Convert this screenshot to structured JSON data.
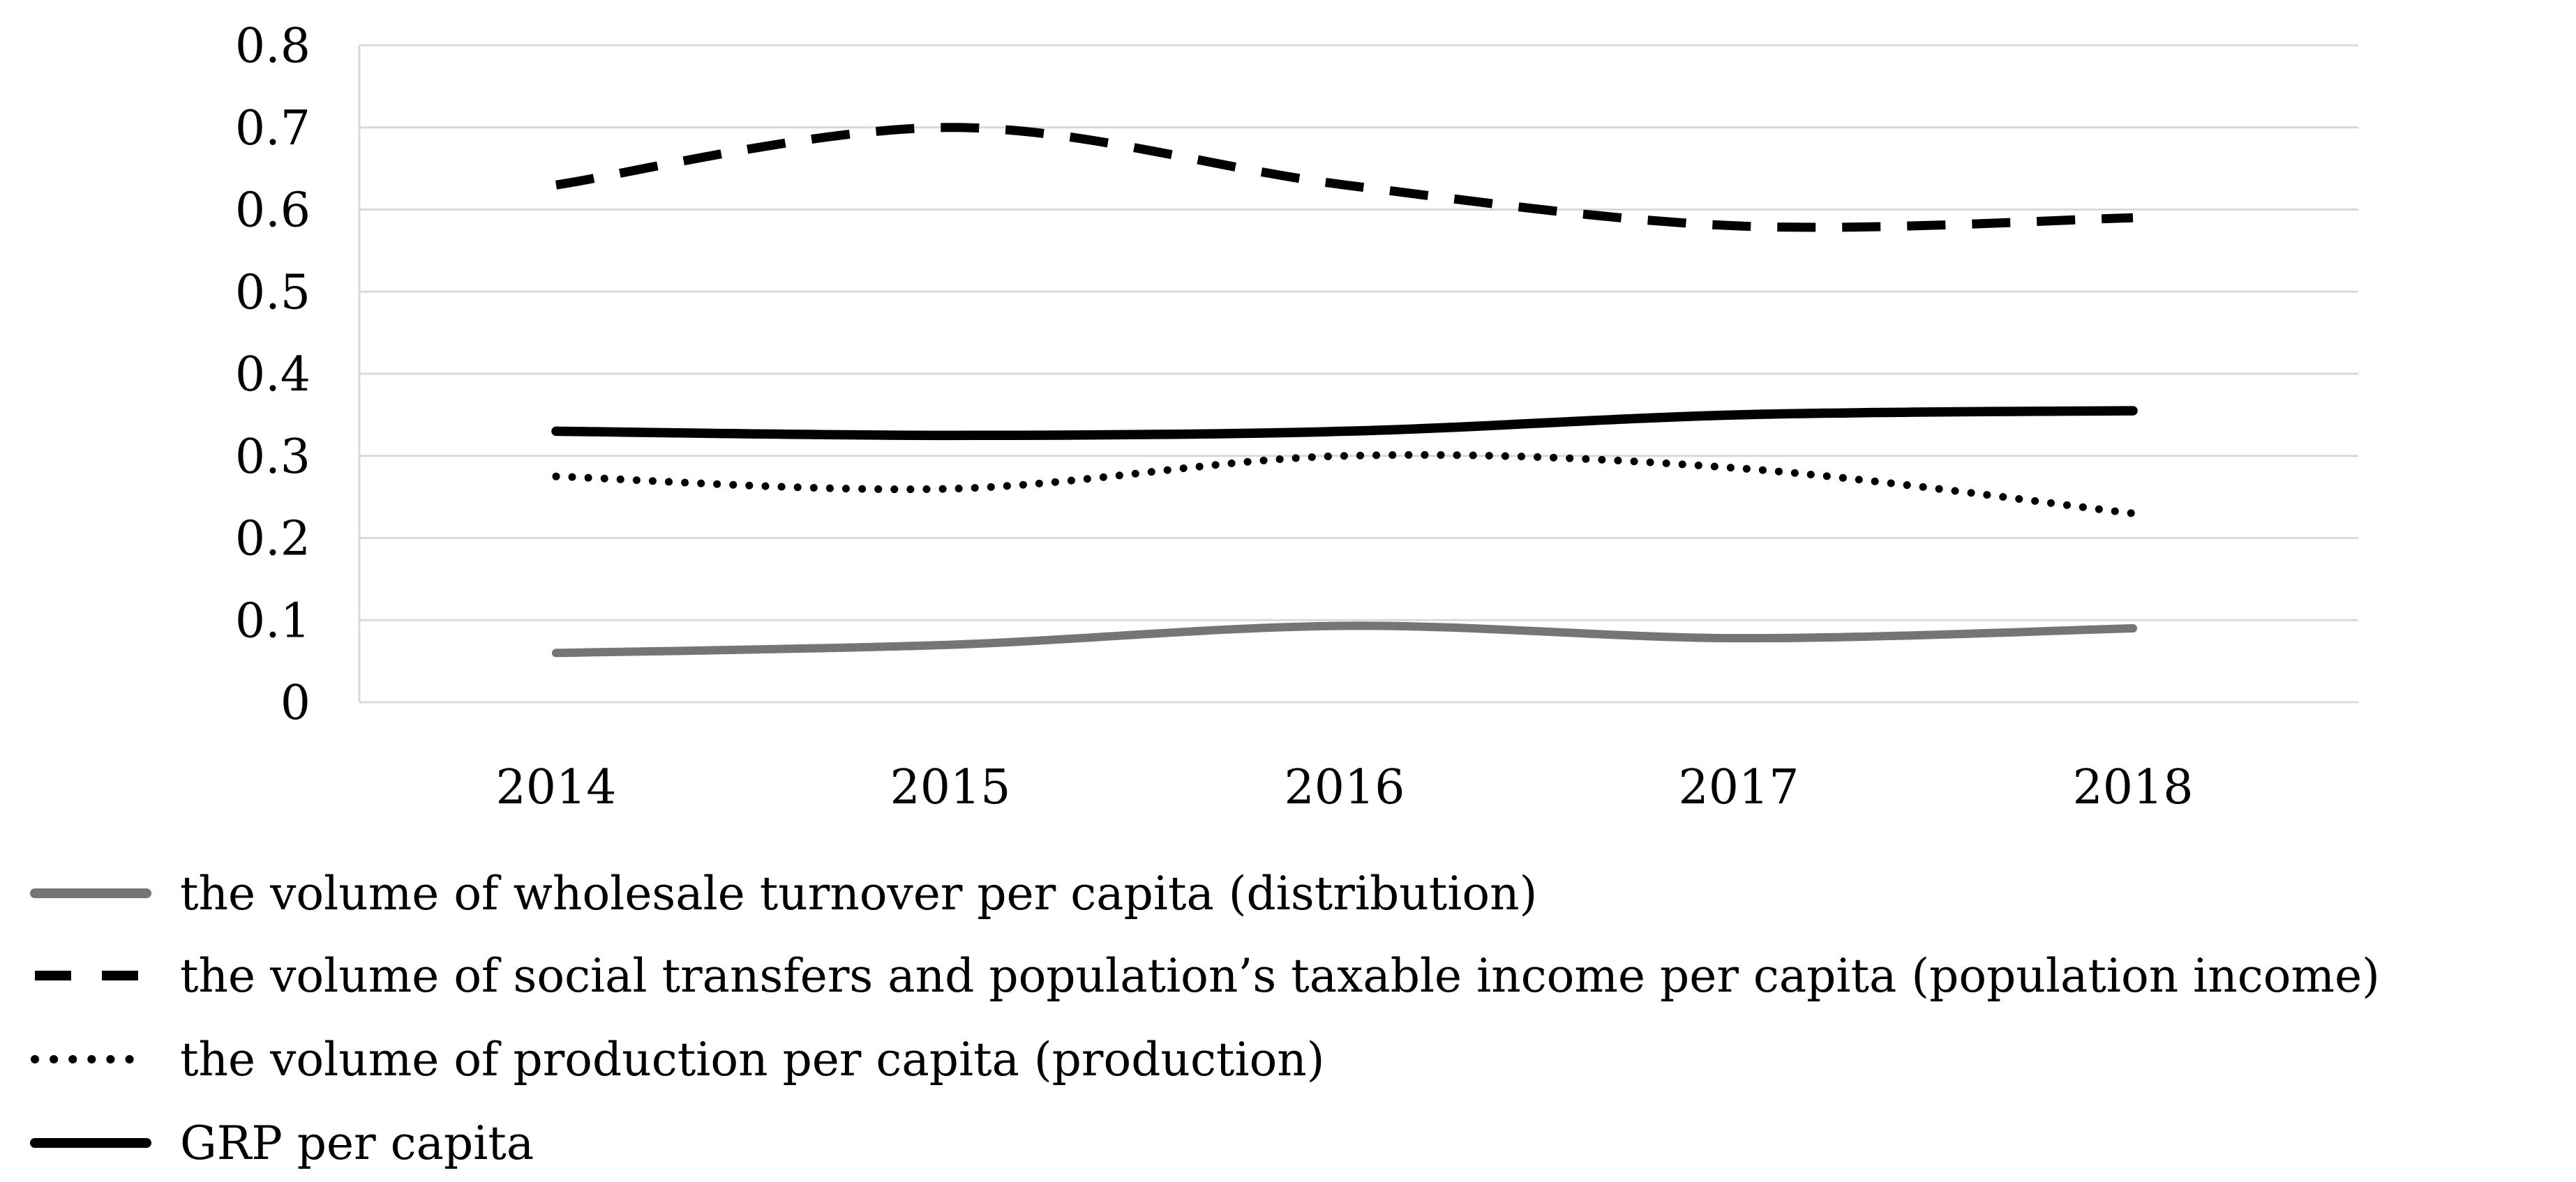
{
  "chart_data": {
    "type": "line",
    "categories": [
      "2014",
      "2015",
      "2016",
      "2017",
      "2018"
    ],
    "series": [
      {
        "name": "the volume of wholesale turnover per capita (distribution)",
        "values": [
          0.06,
          0.07,
          0.093,
          0.078,
          0.09
        ],
        "color": "#757575",
        "line_style": "solid",
        "thickness": 12
      },
      {
        "name": "the volume of social transfers and population’s taxable income per capita (population income)",
        "values": [
          0.63,
          0.7,
          0.63,
          0.58,
          0.59
        ],
        "color": "#000000",
        "line_style": "dashed",
        "thickness": 13
      },
      {
        "name": "the volume of production per capita (production)",
        "values": [
          0.275,
          0.26,
          0.3,
          0.285,
          0.23
        ],
        "color": "#000000",
        "line_style": "dotted",
        "thickness": 11
      },
      {
        "name": "GRP per capita",
        "values": [
          0.33,
          0.325,
          0.33,
          0.35,
          0.355
        ],
        "color": "#000000",
        "line_style": "solid",
        "thickness": 13.5
      }
    ],
    "title": "",
    "xlabel": "",
    "ylabel": "",
    "ylim": [
      0,
      0.8
    ],
    "ytick_step": 0.1,
    "ytick_labels": [
      "0",
      "0.1",
      "0.2",
      "0.3",
      "0.4",
      "0.5",
      "0.6",
      "0.7",
      "0.8"
    ],
    "grid": true,
    "legend_position": "bottom-left",
    "colors": {
      "gridline": "#d9d9d9",
      "axis": "#d9d9d9",
      "text": "#000000",
      "background": "#ffffff",
      "gray_series": "#757575",
      "black_series": "#000000"
    }
  }
}
